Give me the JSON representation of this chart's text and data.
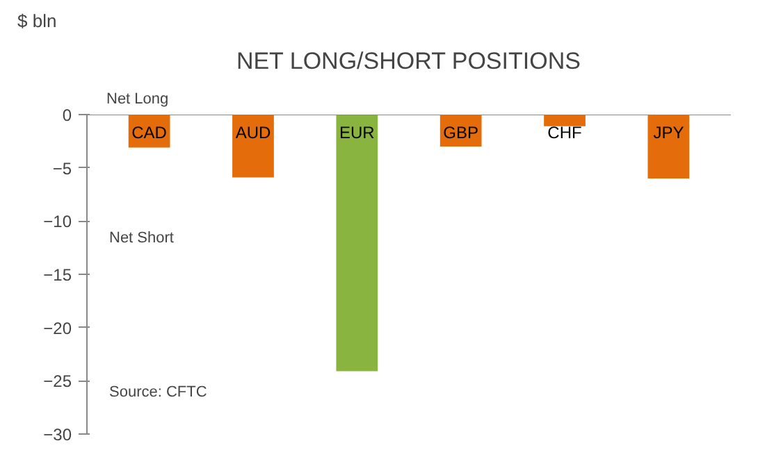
{
  "chart_data": {
    "type": "bar",
    "title": "NET LONG/SHORT POSITIONS",
    "ylabel": "$ bln",
    "categories": [
      "CAD",
      "AUD",
      "EUR",
      "GBP",
      "CHF",
      "JPY"
    ],
    "values": [
      -3.1,
      -5.9,
      -24.1,
      -3.0,
      -1.1,
      -6.0
    ],
    "colors": [
      "#e46c0a",
      "#e46c0a",
      "#8ab440",
      "#e46c0a",
      "#e46c0a",
      "#e46c0a"
    ],
    "ylim": [
      -30,
      0
    ],
    "yticks": [
      0,
      -5,
      -10,
      -15,
      -20,
      -25,
      -30
    ],
    "grid": false,
    "annotations": [
      "Net Long",
      "Net Short",
      "Source: CFTC"
    ]
  }
}
